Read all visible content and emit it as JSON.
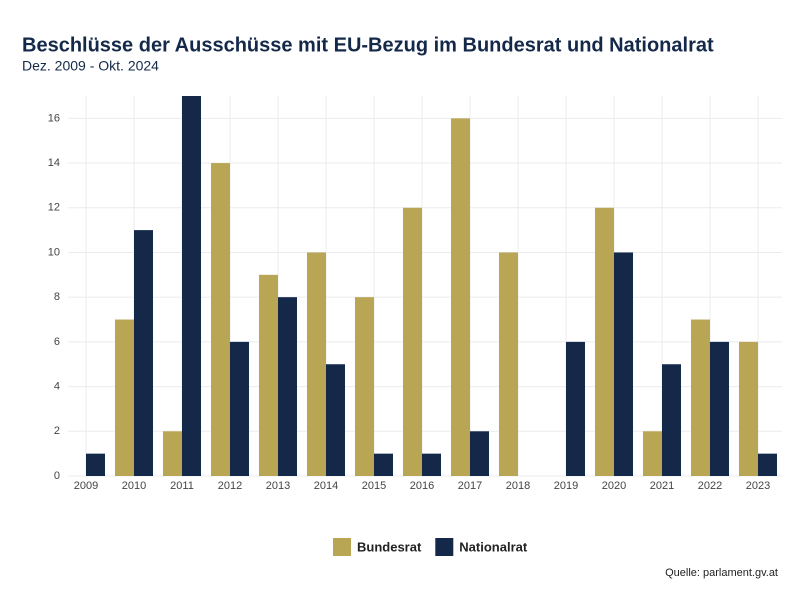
{
  "chart_data": {
    "type": "bar",
    "title": "Beschlüsse der Ausschüsse mit EU-Bezug im Bundesrat und Nationalrat",
    "subtitle": "Dez. 2009 - Okt. 2024",
    "source": "Quelle: parlament.gv.at",
    "categories": [
      "2009",
      "2010",
      "2011",
      "2012",
      "2013",
      "2014",
      "2015",
      "2016",
      "2017",
      "2018",
      "2019",
      "2020",
      "2021",
      "2022",
      "2023"
    ],
    "series": [
      {
        "name": "Bundesrat",
        "color": "#b9a655",
        "values": [
          0,
          7,
          2,
          14,
          9,
          10,
          8,
          12,
          16,
          10,
          0,
          12,
          2,
          7,
          6
        ]
      },
      {
        "name": "Nationalrat",
        "color": "#14294a",
        "values": [
          1,
          11,
          17,
          6,
          8,
          5,
          1,
          1,
          2,
          0,
          6,
          10,
          5,
          6,
          1
        ]
      }
    ],
    "ylim": [
      0,
      17
    ],
    "yticks": [
      0,
      2,
      4,
      6,
      8,
      10,
      12,
      14,
      16
    ],
    "grid": true,
    "legend": "bottom"
  }
}
